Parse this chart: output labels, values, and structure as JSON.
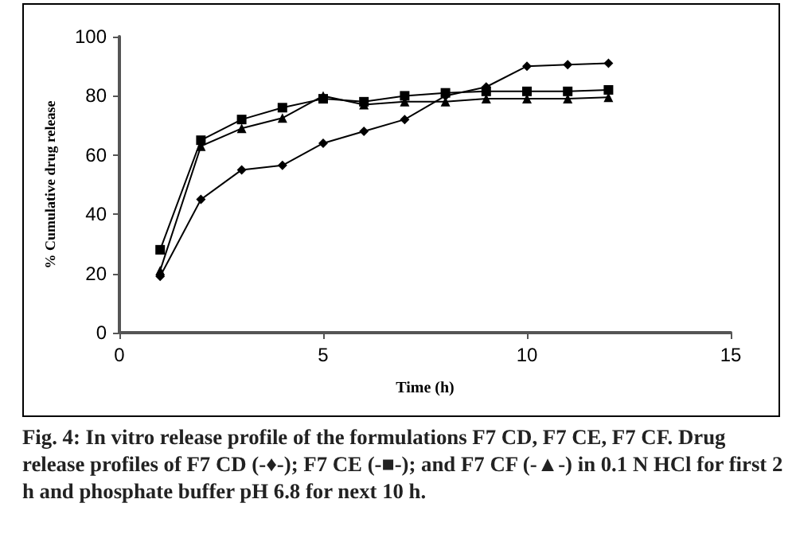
{
  "chart_data": {
    "type": "line",
    "xlabel": "Time (h)",
    "ylabel": "% Cumulative drug release",
    "x": [
      1,
      2,
      3,
      4,
      5,
      6,
      7,
      8,
      9,
      10,
      11,
      12
    ],
    "series": [
      {
        "color": "#000000",
        "marker": "diamond",
        "values": [
          19,
          45,
          55,
          56.5,
          64,
          68,
          72,
          80,
          83,
          90,
          90.5,
          91
        ]
      },
      {
        "color": "#000000",
        "marker": "square",
        "values": [
          28,
          65,
          72,
          76,
          79,
          78,
          80,
          81,
          81.5,
          81.5,
          81.5,
          82
        ]
      },
      {
        "color": "#000000",
        "marker": "triangle",
        "values": [
          21,
          63,
          69,
          72.5,
          80,
          77,
          78,
          78,
          79,
          79,
          79,
          79.5
        ]
      }
    ],
    "xlim": [
      0,
      15
    ],
    "xticks": [
      0,
      5,
      10,
      15
    ],
    "ylim": [
      0,
      100
    ],
    "yticks": [
      0,
      20,
      40,
      60,
      80,
      100
    ],
    "grid": false,
    "annotations": [
      "Fig. 4: In vitro release profile of the formulations F7 CD, F7 CE, F7 CF. Drug release profiles of F7 CD (-♦-); F7 CE (-■-); and F7 CF (-▲-) in 0.1 N HCl for first 2 h and phosphate buffer pH 6.8 for next 10 h."
    ]
  }
}
